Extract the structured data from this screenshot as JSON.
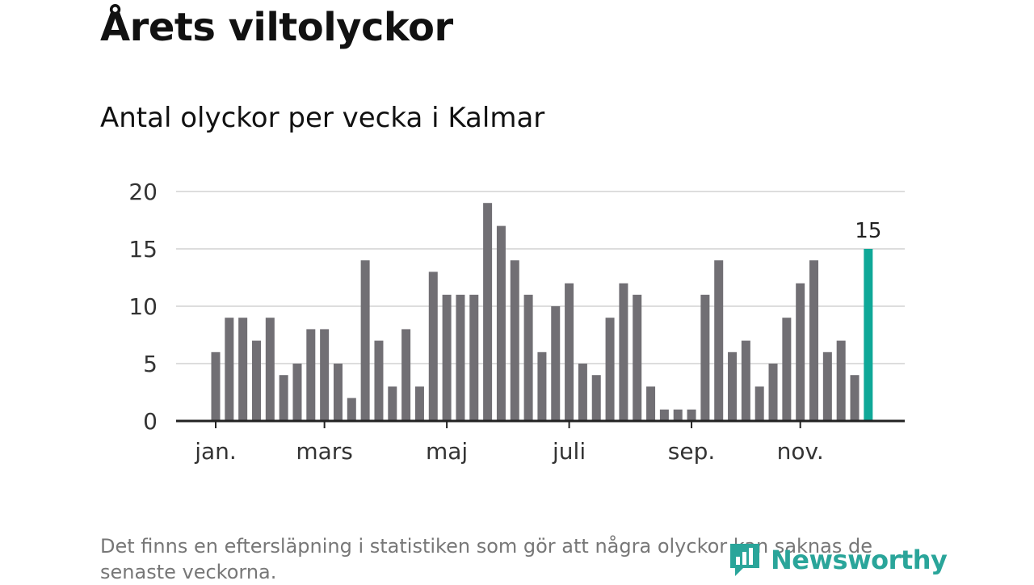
{
  "title": "Årets viltolyckor",
  "subtitle": "Antal olyckor per vecka i Kalmar",
  "footnote": "Det finns en eftersläpning i statistiken som gör att några olyckor kan saknas de senaste veckorna.",
  "brand": {
    "name": "Newsworthy",
    "icon": "newsworthy-logo-icon",
    "color": "#2aa59a"
  },
  "colors": {
    "bar": "#716f74",
    "highlight": "#0fa898",
    "grid": "#dddddd",
    "axis": "#222222"
  },
  "chart_data": {
    "type": "bar",
    "title": "",
    "xlabel": "",
    "ylabel": "",
    "ylim": [
      0,
      20
    ],
    "y_ticks": [
      "0",
      "5",
      "10",
      "15",
      "20"
    ],
    "grid": true,
    "x_tick_labels": [
      {
        "label": "jan.",
        "week": 1
      },
      {
        "label": "mars",
        "week": 9
      },
      {
        "label": "maj",
        "week": 18
      },
      {
        "label": "juli",
        "week": 27
      },
      {
        "label": "sep.",
        "week": 36
      },
      {
        "label": "nov.",
        "week": 44
      }
    ],
    "weeks": [
      1,
      2,
      3,
      4,
      5,
      6,
      7,
      8,
      9,
      10,
      11,
      12,
      13,
      14,
      15,
      16,
      17,
      18,
      19,
      20,
      21,
      22,
      23,
      24,
      25,
      26,
      27,
      28,
      29,
      30,
      31,
      32,
      33,
      34,
      35,
      36,
      37,
      38,
      39,
      40,
      41,
      42,
      43,
      44,
      45,
      46,
      47,
      48,
      49
    ],
    "values": [
      6,
      9,
      9,
      7,
      9,
      4,
      5,
      8,
      8,
      5,
      2,
      14,
      7,
      3,
      8,
      3,
      13,
      11,
      11,
      11,
      19,
      17,
      14,
      11,
      6,
      10,
      12,
      5,
      4,
      9,
      12,
      11,
      3,
      1,
      1,
      1,
      11,
      14,
      6,
      7,
      3,
      5,
      9,
      12,
      14,
      6,
      7,
      4,
      15
    ],
    "highlight_index": 48,
    "highlight_label": "15"
  }
}
